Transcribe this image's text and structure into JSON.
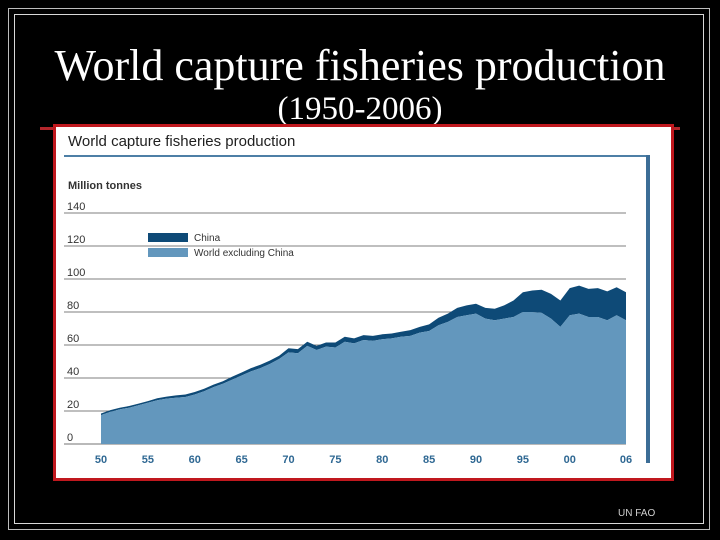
{
  "slide": {
    "title_line1": "World capture fisheries production",
    "title_line2": "(1950-2006)",
    "source": "UN FAO"
  },
  "colors": {
    "china": "#0e4a77",
    "world_excl_china": "#6397bd",
    "axis_ticks": "#2f6893",
    "frame_red": "#c0181e"
  },
  "chart_data": {
    "type": "area",
    "stacked": true,
    "title": "World capture fisheries production",
    "ylabel": "Million tonnes",
    "xlabel": "",
    "ylim": [
      0,
      140
    ],
    "xlim": [
      1950,
      2006
    ],
    "yticks": [
      0,
      20,
      40,
      60,
      80,
      100,
      120,
      140
    ],
    "xticks": [
      {
        "value": 1950,
        "label": "50"
      },
      {
        "value": 1955,
        "label": "55"
      },
      {
        "value": 1960,
        "label": "60"
      },
      {
        "value": 1965,
        "label": "65"
      },
      {
        "value": 1970,
        "label": "70"
      },
      {
        "value": 1975,
        "label": "75"
      },
      {
        "value": 1980,
        "label": "80"
      },
      {
        "value": 1985,
        "label": "85"
      },
      {
        "value": 1990,
        "label": "90"
      },
      {
        "value": 1995,
        "label": "95"
      },
      {
        "value": 2000,
        "label": "00"
      },
      {
        "value": 2006,
        "label": "06"
      }
    ],
    "grid": "horizontal",
    "legend_position": "top-left",
    "x": [
      1950,
      1951,
      1952,
      1953,
      1954,
      1955,
      1956,
      1957,
      1958,
      1959,
      1960,
      1961,
      1962,
      1963,
      1964,
      1965,
      1966,
      1967,
      1968,
      1969,
      1970,
      1971,
      1972,
      1973,
      1974,
      1975,
      1976,
      1977,
      1978,
      1979,
      1980,
      1981,
      1982,
      1983,
      1984,
      1985,
      1986,
      1987,
      1988,
      1989,
      1990,
      1991,
      1992,
      1993,
      1994,
      1995,
      1996,
      1997,
      1998,
      1999,
      2000,
      2001,
      2002,
      2003,
      2004,
      2005,
      2006
    ],
    "series": [
      {
        "name": "World excluding China",
        "values": [
          17.5,
          19.5,
          21,
          22,
          23.5,
          25,
          26.5,
          27.5,
          28,
          28.5,
          30,
          32,
          34.5,
          36.5,
          39,
          41.5,
          44,
          46,
          48.5,
          51.5,
          55.5,
          55,
          59.5,
          57,
          59,
          58.5,
          62,
          61,
          63,
          62.5,
          63.5,
          64,
          65,
          65.5,
          67.5,
          68.5,
          72,
          74,
          77,
          78,
          79,
          76,
          75,
          76,
          77,
          80,
          80,
          79.5,
          76,
          71,
          78,
          79,
          77,
          77,
          75,
          78,
          75
        ]
      },
      {
        "name": "China",
        "values": [
          1,
          1,
          1,
          1,
          1,
          1,
          1.2,
          1.2,
          1.5,
          1.5,
          1.5,
          1.5,
          1.5,
          1.5,
          1.8,
          1.8,
          2,
          2,
          2,
          2,
          2.5,
          2.5,
          2.5,
          2.5,
          2.5,
          3,
          3,
          3,
          3,
          3,
          3,
          3,
          3,
          3.5,
          3.5,
          4,
          4.5,
          5,
          5.5,
          6,
          6,
          6.5,
          7,
          8,
          10,
          12,
          13,
          14,
          15,
          16,
          16.5,
          17,
          17,
          17.5,
          17.5,
          17,
          17
        ]
      }
    ]
  }
}
